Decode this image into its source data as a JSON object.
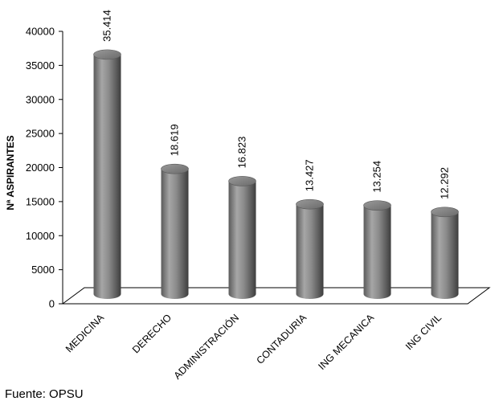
{
  "chart_data": {
    "type": "bar",
    "title": "",
    "xlabel": "",
    "ylabel": "Nª  ASPIRANTES",
    "categories": [
      "MEDICINA",
      "DERECHO",
      "ADMINISTRACIÓN",
      "CONTADURIA",
      "ING MECANICA",
      "ING CIVIL"
    ],
    "values": [
      35414,
      18619,
      16823,
      13427,
      13254,
      12292
    ],
    "value_labels": [
      "35.414",
      "18.619",
      "16.823",
      "13.427",
      "13.254",
      "12.292"
    ],
    "ylim": [
      0,
      40000
    ],
    "yticks": [
      "0",
      "5000",
      "10000",
      "15000",
      "20000",
      "25000",
      "30000",
      "35000",
      "40000"
    ],
    "grid": false,
    "legend": "none",
    "bar_color": "#7f7f7f",
    "style": "3d-cylinder"
  },
  "source": "Fuente: OPSU"
}
